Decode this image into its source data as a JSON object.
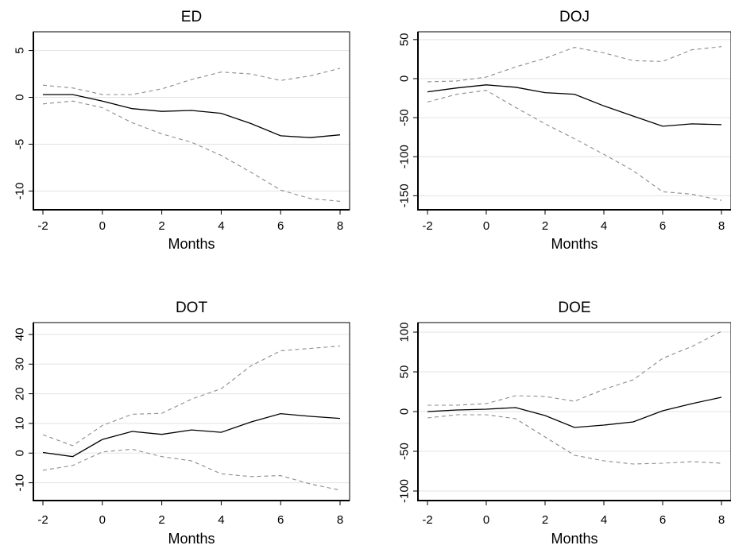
{
  "chart_data": [
    {
      "type": "line",
      "title": "ED",
      "xlabel": "Months",
      "ylabel": "",
      "xlim": [
        -2,
        8
      ],
      "ylim": [
        -12,
        7
      ],
      "xticks": [
        -2,
        0,
        2,
        4,
        6,
        8
      ],
      "yticks": [
        5,
        0,
        -5,
        -10
      ],
      "x": [
        -2,
        -1,
        0,
        1,
        2,
        3,
        4,
        5,
        6,
        7,
        8
      ],
      "series": [
        {
          "role": "estimate",
          "values": [
            0.3,
            0.3,
            -0.4,
            -1.2,
            -1.5,
            -1.4,
            -1.7,
            -2.8,
            -4.1,
            -4.3,
            -4.0
          ]
        },
        {
          "role": "upper",
          "values": [
            1.3,
            1.0,
            0.3,
            0.3,
            0.9,
            1.9,
            2.7,
            2.5,
            1.8,
            2.3,
            3.1
          ]
        },
        {
          "role": "lower",
          "values": [
            -0.7,
            -0.4,
            -1.1,
            -2.7,
            -3.9,
            -4.8,
            -6.2,
            -8.0,
            -9.9,
            -10.8,
            -11.1
          ]
        }
      ]
    },
    {
      "type": "line",
      "title": "DOJ",
      "xlabel": "Months",
      "ylabel": "",
      "xlim": [
        -2,
        8
      ],
      "ylim": [
        -168,
        60
      ],
      "xticks": [
        -2,
        0,
        2,
        4,
        6,
        8
      ],
      "yticks": [
        50,
        0,
        -50,
        -100,
        -150
      ],
      "x": [
        -2,
        -1,
        0,
        1,
        2,
        3,
        4,
        5,
        6,
        7,
        8
      ],
      "series": [
        {
          "role": "estimate",
          "values": [
            -17,
            -12,
            -8,
            -11,
            -18,
            -20,
            -35,
            -48,
            -61,
            -58,
            -59
          ]
        },
        {
          "role": "upper",
          "values": [
            -4,
            -3,
            2,
            15,
            26,
            40,
            33,
            23,
            22,
            37,
            41
          ]
        },
        {
          "role": "lower",
          "values": [
            -30,
            -20,
            -15,
            -37,
            -58,
            -77,
            -97,
            -118,
            -145,
            -148,
            -156
          ]
        }
      ]
    },
    {
      "type": "line",
      "title": "DOT",
      "xlabel": "Months",
      "ylabel": "",
      "xlim": [
        -2,
        8
      ],
      "ylim": [
        -16,
        44
      ],
      "xticks": [
        -2,
        0,
        2,
        4,
        6,
        8
      ],
      "yticks": [
        40,
        30,
        20,
        10,
        0,
        -10
      ],
      "x": [
        -2,
        -1,
        0,
        1,
        2,
        3,
        4,
        5,
        6,
        7,
        8
      ],
      "series": [
        {
          "role": "estimate",
          "values": [
            0.2,
            -1.2,
            4.6,
            7.3,
            6.3,
            7.8,
            7.0,
            10.5,
            13.3,
            12.4,
            11.7
          ]
        },
        {
          "role": "upper",
          "values": [
            6.2,
            2.5,
            9.3,
            13.1,
            13.4,
            18.2,
            21.7,
            29.4,
            34.5,
            35.3,
            36.1
          ]
        },
        {
          "role": "lower",
          "values": [
            -5.8,
            -4.2,
            0.4,
            1.3,
            -1.2,
            -2.6,
            -7.0,
            -7.9,
            -7.6,
            -10.4,
            -12.5
          ]
        }
      ]
    },
    {
      "type": "line",
      "title": "DOE",
      "xlabel": "Months",
      "ylabel": "",
      "xlim": [
        -2,
        8
      ],
      "ylim": [
        -112,
        112
      ],
      "xticks": [
        -2,
        0,
        2,
        4,
        6,
        8
      ],
      "yticks": [
        100,
        50,
        0,
        -50,
        -100
      ],
      "x": [
        -2,
        -1,
        0,
        1,
        2,
        3,
        4,
        5,
        6,
        7,
        8
      ],
      "series": [
        {
          "role": "estimate",
          "values": [
            0,
            2,
            3,
            5,
            -5,
            -20,
            -17,
            -13,
            1,
            10,
            18
          ]
        },
        {
          "role": "upper",
          "values": [
            8,
            8,
            10,
            20,
            19,
            13,
            28,
            40,
            67,
            82,
            101
          ]
        },
        {
          "role": "lower",
          "values": [
            -8,
            -4,
            -4,
            -9,
            -32,
            -55,
            -62,
            -66,
            -65,
            -63,
            -65
          ]
        }
      ]
    }
  ]
}
